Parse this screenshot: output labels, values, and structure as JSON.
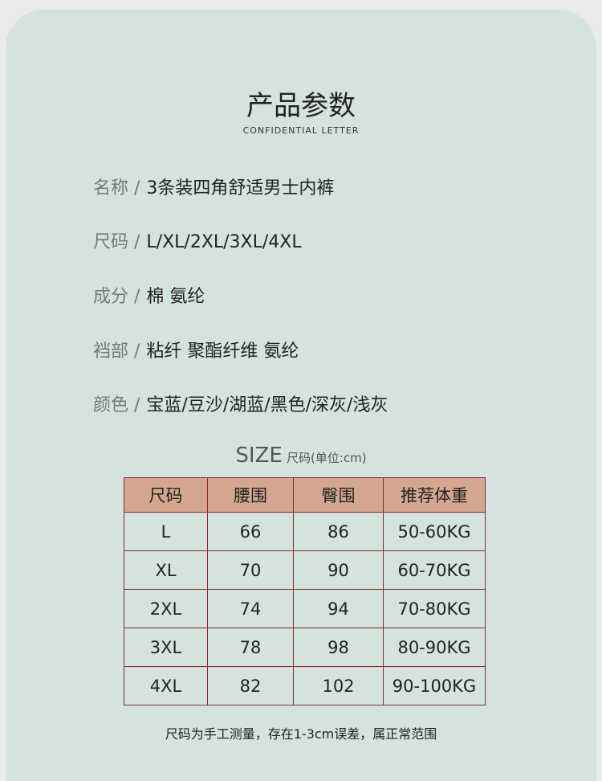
{
  "header": {
    "title": "产品参数",
    "subtitle": "CONFIDENTIAL LETTER"
  },
  "params": [
    {
      "key": "名称 /",
      "value": "3条装四角舒适男士内裤"
    },
    {
      "key": "尺码 /",
      "value": "L/XL/2XL/3XL/4XL"
    },
    {
      "key": "成分 /",
      "value": "棉 氨纶"
    },
    {
      "key": "裆部 /",
      "value": "粘纤 聚酯纤维 氨纶"
    },
    {
      "key": "颜色 /",
      "value": "宝蓝/豆沙/湖蓝/黑色/深灰/浅灰"
    }
  ],
  "size_table": {
    "title": "SIZE",
    "unit": "尺码(单位:cm)",
    "headers": [
      "尺码",
      "腰围",
      "臀围",
      "推荐体重"
    ],
    "rows": [
      [
        "L",
        "66",
        "86",
        "50-60KG"
      ],
      [
        "XL",
        "70",
        "90",
        "60-70KG"
      ],
      [
        "2XL",
        "74",
        "94",
        "70-80KG"
      ],
      [
        "3XL",
        "78",
        "98",
        "80-90KG"
      ],
      [
        "4XL",
        "82",
        "102",
        "90-100KG"
      ]
    ]
  },
  "note": "尺码为手工测量，存在1-3cm误差，属正常范围",
  "colors": {
    "background": "#ebebeb",
    "card": "#d5e3de",
    "table_header": "#d4a78e",
    "table_border": "#8b2a2a"
  }
}
